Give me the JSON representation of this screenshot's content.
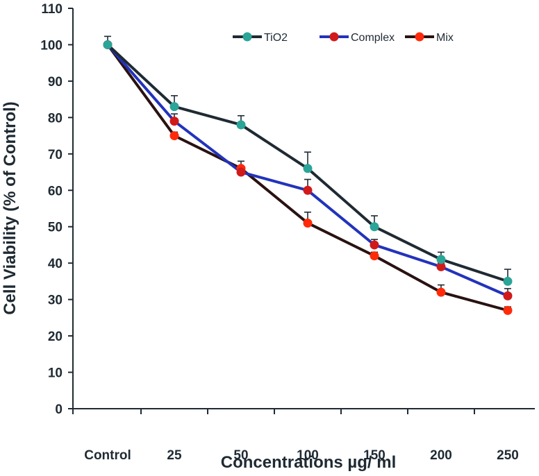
{
  "chart_data": {
    "type": "line",
    "title": "",
    "xlabel": "Concentrations µg/ ml",
    "ylabel": "Cell  Viability (% of Control)",
    "categories": [
      "Control",
      "25",
      "50",
      "100",
      "150",
      "200",
      "250"
    ],
    "ylim": [
      0,
      110
    ],
    "yticks": [
      0,
      10,
      20,
      30,
      40,
      50,
      60,
      70,
      80,
      90,
      100,
      110
    ],
    "grid": false,
    "legend_position": "top-right",
    "series": [
      {
        "name": "TiO2",
        "line_color": "#1f2a33",
        "marker_color": "#2aa598",
        "values": [
          100,
          83,
          78,
          66,
          50,
          41,
          35
        ],
        "errors": [
          2.3,
          3,
          2.5,
          4.5,
          3,
          2,
          3.3
        ]
      },
      {
        "name": "Complex",
        "line_color": "#2233bb",
        "marker_color": "#d11a1a",
        "values": [
          100,
          79,
          65,
          60,
          45,
          39,
          31
        ],
        "errors": [
          0,
          2,
          1.5,
          3,
          1.5,
          1,
          2
        ]
      },
      {
        "name": "Mix",
        "line_color": "#2a1212",
        "marker_color": "#ff2a0a",
        "values": [
          100,
          75,
          66,
          51,
          42,
          32,
          27
        ],
        "errors": [
          0,
          1,
          2,
          3,
          1,
          2,
          1
        ]
      }
    ]
  }
}
